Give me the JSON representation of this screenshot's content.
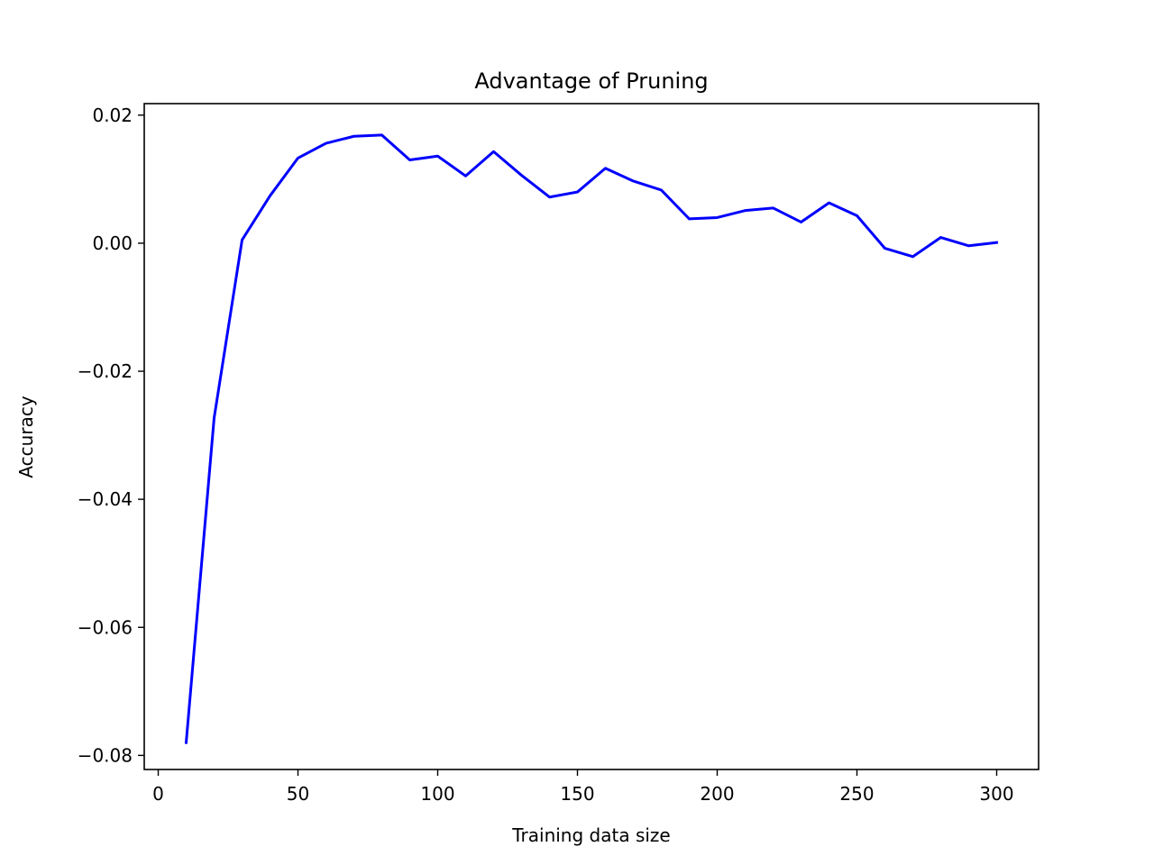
{
  "chart_data": {
    "type": "line",
    "title": "Advantage of Pruning",
    "xlabel": "Training data size",
    "ylabel": "Accuracy",
    "xlim": [
      -5,
      315
    ],
    "ylim": [
      -0.0822,
      0.0218
    ],
    "x_ticks": [
      {
        "value": 0,
        "label": "0"
      },
      {
        "value": 50,
        "label": "50"
      },
      {
        "value": 100,
        "label": "100"
      },
      {
        "value": 150,
        "label": "150"
      },
      {
        "value": 200,
        "label": "200"
      },
      {
        "value": 250,
        "label": "250"
      },
      {
        "value": 300,
        "label": "300"
      }
    ],
    "y_ticks": [
      {
        "value": 0.02,
        "label": "0.02"
      },
      {
        "value": 0.0,
        "label": "0.00"
      },
      {
        "value": -0.02,
        "label": "−0.02"
      },
      {
        "value": -0.04,
        "label": "−0.04"
      },
      {
        "value": -0.06,
        "label": "−0.06"
      },
      {
        "value": -0.08,
        "label": "−0.08"
      }
    ],
    "grid": false,
    "series": [
      {
        "color": "#0000ff",
        "x": [
          10,
          20,
          30,
          40,
          50,
          60,
          70,
          80,
          90,
          100,
          110,
          120,
          130,
          140,
          150,
          160,
          170,
          180,
          190,
          200,
          210,
          220,
          230,
          240,
          250,
          260,
          270,
          280,
          290,
          300
        ],
        "y": [
          -0.078,
          -0.0273,
          0.0005,
          0.0074,
          0.0133,
          0.0156,
          0.0167,
          0.0169,
          0.013,
          0.0136,
          0.0105,
          0.0143,
          0.0106,
          0.0072,
          0.008,
          0.0117,
          0.0097,
          0.0083,
          0.0038,
          0.004,
          0.0051,
          0.0055,
          0.0033,
          0.0063,
          0.0043,
          -0.0008,
          -0.0021,
          0.0009,
          -0.0004,
          0.0001
        ]
      }
    ]
  }
}
